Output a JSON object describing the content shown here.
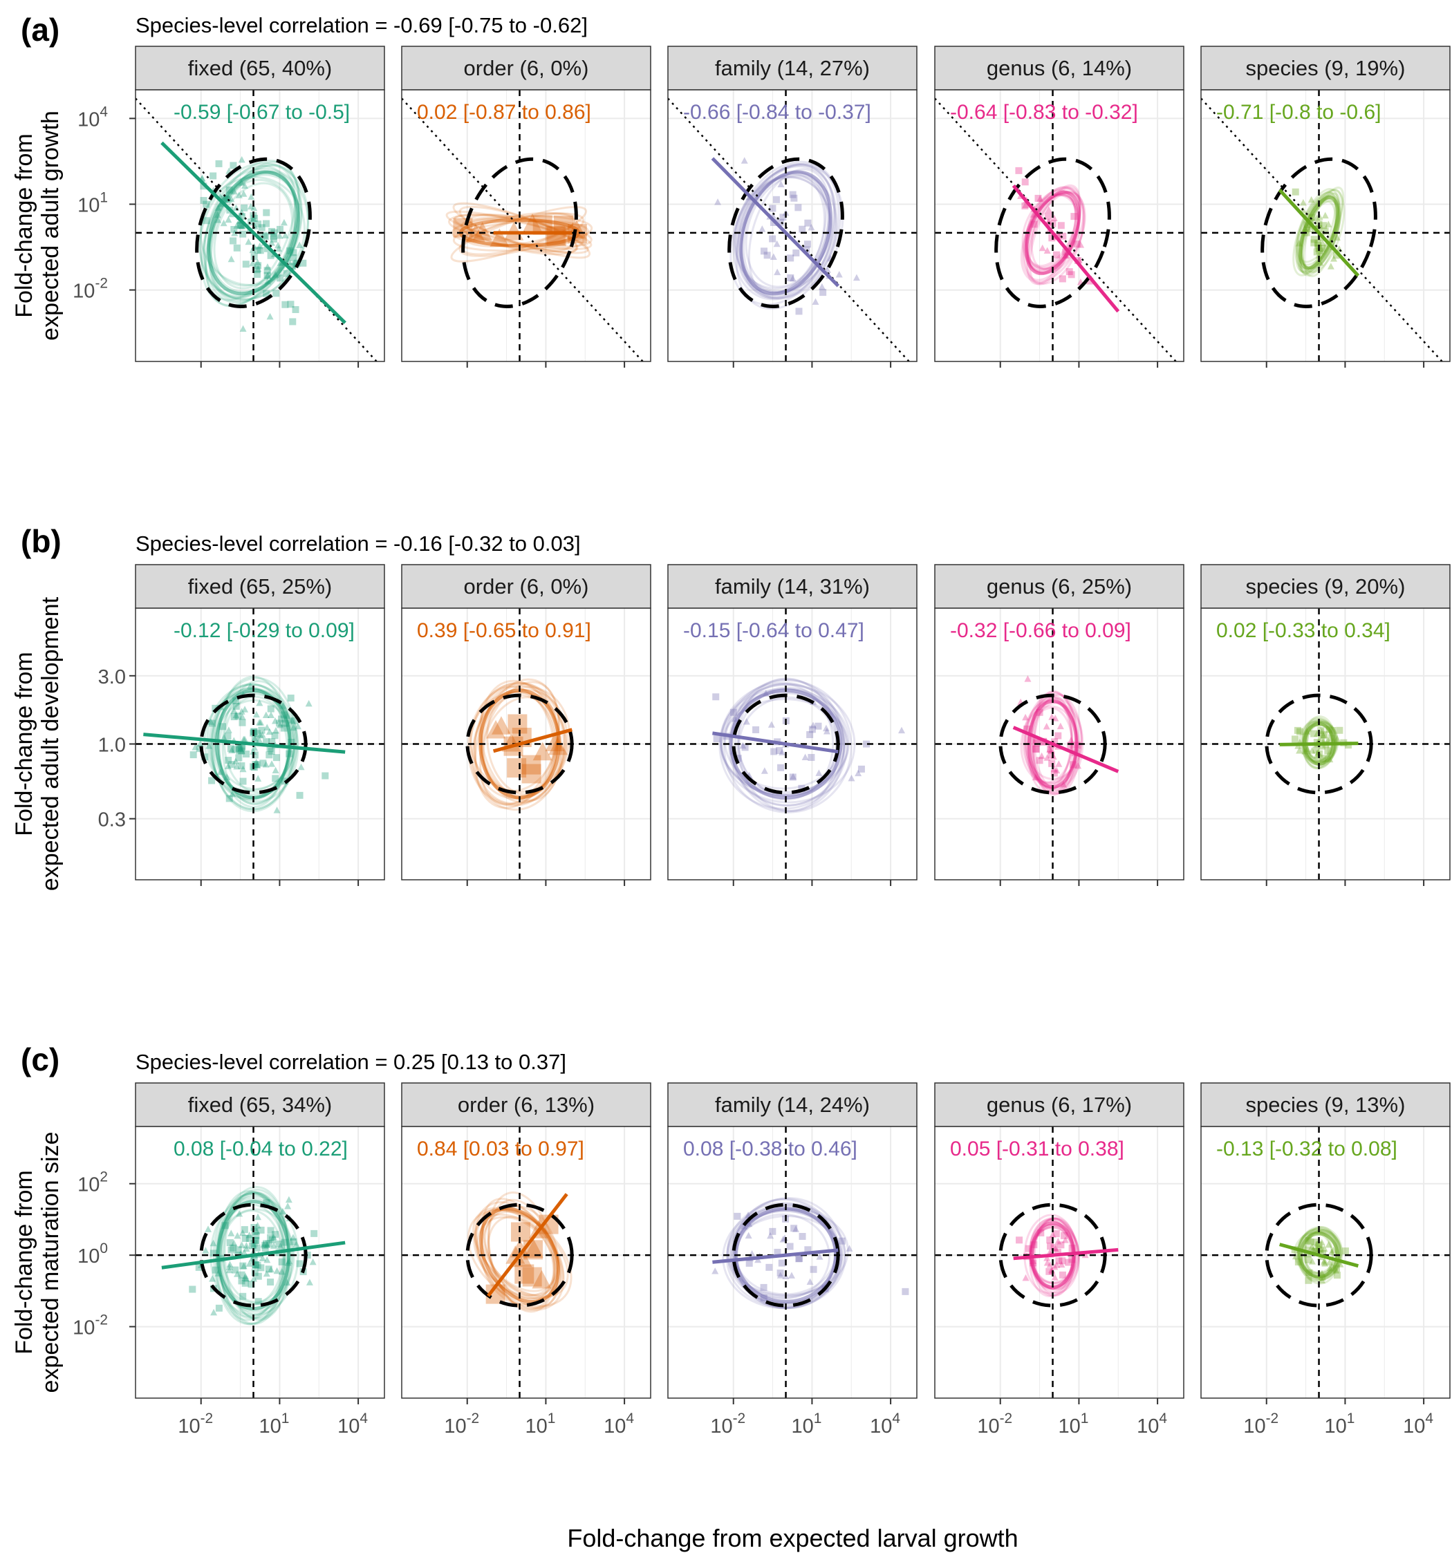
{
  "figure": {
    "x_axis_title": "Fold-change from expected larval growth",
    "x_ticks": [
      {
        "base": "10",
        "exp": "-2",
        "value": -2
      },
      {
        "base": "10",
        "exp": "1",
        "value": 1
      },
      {
        "base": "10",
        "exp": "4",
        "value": 4
      }
    ]
  },
  "chart_data": [
    {
      "type": "scatter",
      "label": "(a)",
      "title": "Species-level correlation = -0.69 [-0.75 to -0.62]",
      "ylabel_line1": "Fold-change from",
      "ylabel_line2": "expected adult growth",
      "xlabel": "Fold-change from expected larval growth",
      "log10_scale": true,
      "x_range_log10": [
        -4.5,
        5
      ],
      "y_range_log10": [
        -4.5,
        5
      ],
      "y_ticks": [
        {
          "base": "10",
          "exp": "4",
          "value": 4
        },
        {
          "base": "10",
          "exp": "1",
          "value": 1
        },
        {
          "base": "10",
          "exp": "-2",
          "value": -2
        }
      ],
      "dotted_reference_line": true,
      "facets": [
        {
          "strip": "fixed (65, 40%)",
          "annotation": "-0.59 [-0.67 to -0.5]",
          "color": "#1b9e77",
          "slope": -0.9,
          "line_x_range": [
            -3.5,
            3.5
          ],
          "ellipse_rx": 3.2,
          "ellipse_ry": 4.4,
          "ellipse_angle": 20,
          "outer_ellipse_rx": 4.3,
          "outer_ellipse_ry": 6.4,
          "outer_ellipse_angle": 20
        },
        {
          "strip": "order (6, 0%)",
          "annotation": "0.02 [-0.87 to 0.86]",
          "color": "#d95f02",
          "slope": 0,
          "line_x_range": [
            -1,
            2
          ],
          "ellipse_rx": 4.5,
          "ellipse_ry": 0.9,
          "ellipse_angle": 0,
          "outer_ellipse_rx": 4.3,
          "outer_ellipse_ry": 6.4,
          "outer_ellipse_angle": 20
        },
        {
          "strip": "family (14, 27%)",
          "annotation": "-0.66 [-0.84 to -0.37]",
          "color": "#7570b3",
          "slope": -0.93,
          "line_x_range": [
            -2.8,
            2
          ],
          "ellipse_rx": 3.2,
          "ellipse_ry": 4.4,
          "ellipse_angle": 20,
          "outer_ellipse_rx": 4.3,
          "outer_ellipse_ry": 6.4,
          "outer_ellipse_angle": 20
        },
        {
          "strip": "genus (6, 14%)",
          "annotation": "-0.64 [-0.83 to -0.32]",
          "color": "#e7298a",
          "slope": -1.1,
          "line_x_range": [
            -1.5,
            2.5
          ],
          "ellipse_rx": 1.7,
          "ellipse_ry": 3.0,
          "ellipse_angle": 22,
          "outer_ellipse_rx": 4.3,
          "outer_ellipse_ry": 6.4,
          "outer_ellipse_angle": 20
        },
        {
          "strip": "species (9, 19%)",
          "annotation": "-0.71 [-0.8 to -0.6]",
          "color": "#66a61e",
          "slope": -1.0,
          "line_x_range": [
            -1.5,
            1.5
          ],
          "ellipse_rx": 1.1,
          "ellipse_ry": 2.6,
          "ellipse_angle": 20,
          "outer_ellipse_rx": 4.3,
          "outer_ellipse_ry": 6.4,
          "outer_ellipse_angle": 20
        }
      ]
    },
    {
      "type": "scatter",
      "label": "(b)",
      "title": "Species-level correlation = -0.16 [-0.32 to 0.03]",
      "ylabel_line1": "Fold-change from",
      "ylabel_line2": "expected adult development",
      "xlabel": "Fold-change from expected larval growth",
      "log10_scale": true,
      "x_range_log10": [
        -4.5,
        5
      ],
      "y_range_log10": [
        -0.95,
        0.95
      ],
      "y_ticks": [
        {
          "base": "3.0",
          "exp": "",
          "value": 0.4771
        },
        {
          "base": "1.0",
          "exp": "",
          "value": 0
        },
        {
          "base": "0.3",
          "exp": "",
          "value": -0.5229
        }
      ],
      "dotted_reference_line": false,
      "facets": [
        {
          "strip": "fixed (65, 25%)",
          "annotation": "-0.12 [-0.29 to 0.09]",
          "color": "#1b9e77",
          "slope": -0.016,
          "line_x_range": [
            -4.2,
            3.5
          ],
          "ellipse_rx": 2.8,
          "ellipse_ry": 0.75,
          "ellipse_angle": 0,
          "outer_ellipse_rx": 4.2,
          "outer_ellipse_ry": 0.82,
          "outer_ellipse_angle": 0
        },
        {
          "strip": "order (6, 0%)",
          "annotation": "0.39 [-0.65 to 0.91]",
          "color": "#d95f02",
          "slope": 0.05,
          "line_x_range": [
            -1,
            2
          ],
          "ellipse_rx": 3.0,
          "ellipse_ry": 0.75,
          "ellipse_angle": 0,
          "outer_ellipse_rx": 4.2,
          "outer_ellipse_ry": 0.82,
          "outer_ellipse_angle": 0
        },
        {
          "strip": "family (14, 31%)",
          "annotation": "-0.15 [-0.64 to 0.47]",
          "color": "#7570b3",
          "slope": -0.027,
          "line_x_range": [
            -2.8,
            2
          ],
          "ellipse_rx": 4.2,
          "ellipse_ry": 0.75,
          "ellipse_angle": 0,
          "outer_ellipse_rx": 4.2,
          "outer_ellipse_ry": 0.82,
          "outer_ellipse_angle": 0
        },
        {
          "strip": "genus (6, 25%)",
          "annotation": "-0.32 [-0.66 to 0.09]",
          "color": "#e7298a",
          "slope": -0.077,
          "line_x_range": [
            -1.5,
            2.5
          ],
          "ellipse_rx": 1.8,
          "ellipse_ry": 0.6,
          "ellipse_angle": 0,
          "outer_ellipse_rx": 4.2,
          "outer_ellipse_ry": 0.82,
          "outer_ellipse_angle": 0
        },
        {
          "strip": "species (9, 20%)",
          "annotation": "0.02 [-0.33 to 0.34]",
          "color": "#66a61e",
          "slope": 0.003,
          "line_x_range": [
            -1.5,
            1.5
          ],
          "ellipse_rx": 1.1,
          "ellipse_ry": 0.28,
          "ellipse_angle": 0,
          "outer_ellipse_rx": 4.2,
          "outer_ellipse_ry": 0.82,
          "outer_ellipse_angle": 0
        }
      ]
    },
    {
      "type": "scatter",
      "label": "(c)",
      "title": "Species-level correlation = 0.25 [0.13 to 0.37]",
      "ylabel_line1": "Fold-change from",
      "ylabel_line2": "expected maturation size",
      "xlabel": "Fold-change from expected larval growth",
      "log10_scale": true,
      "x_range_log10": [
        -4.5,
        5
      ],
      "y_range_log10": [
        -4,
        3.6
      ],
      "y_ticks": [
        {
          "base": "10",
          "exp": "2",
          "value": 2
        },
        {
          "base": "10",
          "exp": "0",
          "value": 0
        },
        {
          "base": "10",
          "exp": "-2",
          "value": -2
        }
      ],
      "dotted_reference_line": false,
      "facets": [
        {
          "strip": "fixed (65, 34%)",
          "annotation": "0.08 [-0.04 to 0.22]",
          "color": "#1b9e77",
          "slope": 0.1,
          "line_x_range": [
            -3.5,
            3.5
          ],
          "ellipse_rx": 2.7,
          "ellipse_ry": 3.0,
          "ellipse_angle": 0,
          "outer_ellipse_rx": 4.2,
          "outer_ellipse_ry": 3.4,
          "outer_ellipse_angle": 0
        },
        {
          "strip": "order (6, 13%)",
          "annotation": "0.84 [0.03 to 0.97]",
          "color": "#d95f02",
          "slope": 0.95,
          "line_x_range": [
            -1.2,
            1.8
          ],
          "ellipse_rx": 2.6,
          "ellipse_ry": 2.8,
          "ellipse_angle": -30,
          "outer_ellipse_rx": 4.2,
          "outer_ellipse_ry": 3.4,
          "outer_ellipse_angle": 0
        },
        {
          "strip": "family (14, 24%)",
          "annotation": "0.08 [-0.38 to 0.46]",
          "color": "#7570b3",
          "slope": 0.07,
          "line_x_range": [
            -2.8,
            2
          ],
          "ellipse_rx": 3.8,
          "ellipse_ry": 2.6,
          "ellipse_angle": 0,
          "outer_ellipse_rx": 4.2,
          "outer_ellipse_ry": 3.4,
          "outer_ellipse_angle": 0
        },
        {
          "strip": "genus (6, 17%)",
          "annotation": "0.05 [-0.31 to 0.38]",
          "color": "#e7298a",
          "slope": 0.06,
          "line_x_range": [
            -1.5,
            2.5
          ],
          "ellipse_rx": 1.6,
          "ellipse_ry": 1.8,
          "ellipse_angle": 0,
          "outer_ellipse_rx": 4.2,
          "outer_ellipse_ry": 3.4,
          "outer_ellipse_angle": 0
        },
        {
          "strip": "species (9, 13%)",
          "annotation": "-0.13 [-0.32 to 0.08]",
          "color": "#66a61e",
          "slope": -0.2,
          "line_x_range": [
            -1.5,
            1.5
          ],
          "ellipse_rx": 1.4,
          "ellipse_ry": 1.2,
          "ellipse_angle": 0,
          "outer_ellipse_rx": 4.2,
          "outer_ellipse_ry": 3.4,
          "outer_ellipse_angle": 0
        }
      ]
    }
  ]
}
